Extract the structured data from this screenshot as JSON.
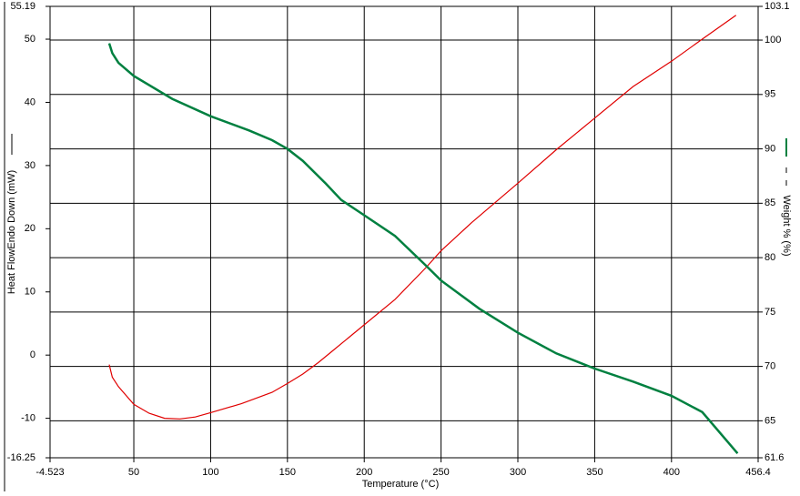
{
  "chart_data": {
    "type": "line",
    "x_label": "Temperature (°C)",
    "y_label": "Heat FlowEndo Down (mW)",
    "y2_label": "Weight % (%)",
    "xlim": [
      -4.523,
      456.4
    ],
    "xticks": [
      -4.523,
      50,
      100,
      150,
      200,
      250,
      300,
      350,
      400,
      456.4
    ],
    "ylim": [
      -16.25,
      55.19
    ],
    "yticks": [
      -16.25,
      -10,
      0,
      10,
      20,
      30,
      40,
      50,
      55.19
    ],
    "y2lim": [
      61.6,
      103.1
    ],
    "y2ticks": [
      61.6,
      65,
      70,
      75,
      80,
      85,
      90,
      95,
      100,
      103.1
    ],
    "grid": true,
    "series": [
      {
        "name": "Heat Flow",
        "color": "#e00000",
        "axis": "y",
        "x": [
          34,
          36,
          40,
          50,
          60,
          70,
          80,
          90,
          100,
          120,
          140,
          150,
          160,
          170,
          180,
          200,
          220,
          240,
          250,
          270,
          300,
          325,
          350,
          375,
          400,
          420,
          442
        ],
        "values": [
          -1.5,
          -3.5,
          -5,
          -7.8,
          -9.2,
          -10,
          -10.1,
          -9.8,
          -9.1,
          -7.7,
          -5.9,
          -4.5,
          -3,
          -1.2,
          0.8,
          4.8,
          8.8,
          13.8,
          16.5,
          21,
          27.2,
          32.5,
          37.5,
          42.5,
          46.5,
          50,
          53.8
        ]
      },
      {
        "name": "Weight",
        "color": "#008040",
        "axis": "y2",
        "x": [
          34,
          36,
          40,
          50,
          75,
          100,
          125,
          140,
          150,
          160,
          175,
          185,
          200,
          220,
          240,
          250,
          275,
          300,
          325,
          350,
          375,
          400,
          420,
          443
        ],
        "values": [
          99.7,
          98.8,
          97.9,
          96.7,
          94.6,
          93.0,
          91.7,
          90.8,
          90.0,
          88.9,
          86.8,
          85.3,
          83.9,
          82.0,
          79.3,
          77.9,
          75.3,
          73.1,
          71.2,
          69.8,
          68.6,
          67.3,
          65.8,
          62.0
        ]
      }
    ]
  }
}
